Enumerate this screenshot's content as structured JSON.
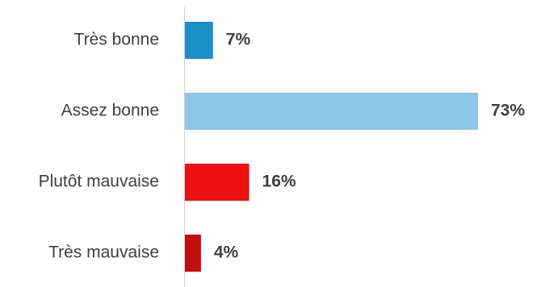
{
  "chart_data": {
    "type": "bar",
    "orientation": "horizontal",
    "categories": [
      "Très bonne",
      "Assez bonne",
      "Plutôt mauvaise",
      "Très mauvaise"
    ],
    "values": [
      7,
      73,
      16,
      4
    ],
    "value_labels": [
      "7%",
      "73%",
      "16%",
      "4%"
    ],
    "colors": [
      "#1a8fc8",
      "#8ec6e6",
      "#ee1111",
      "#c00f0f"
    ],
    "axis_color": "#d0d0d0",
    "xlim": [
      0,
      73
    ],
    "title": "",
    "xlabel": "",
    "ylabel": "",
    "grid": false,
    "legend": "none"
  }
}
